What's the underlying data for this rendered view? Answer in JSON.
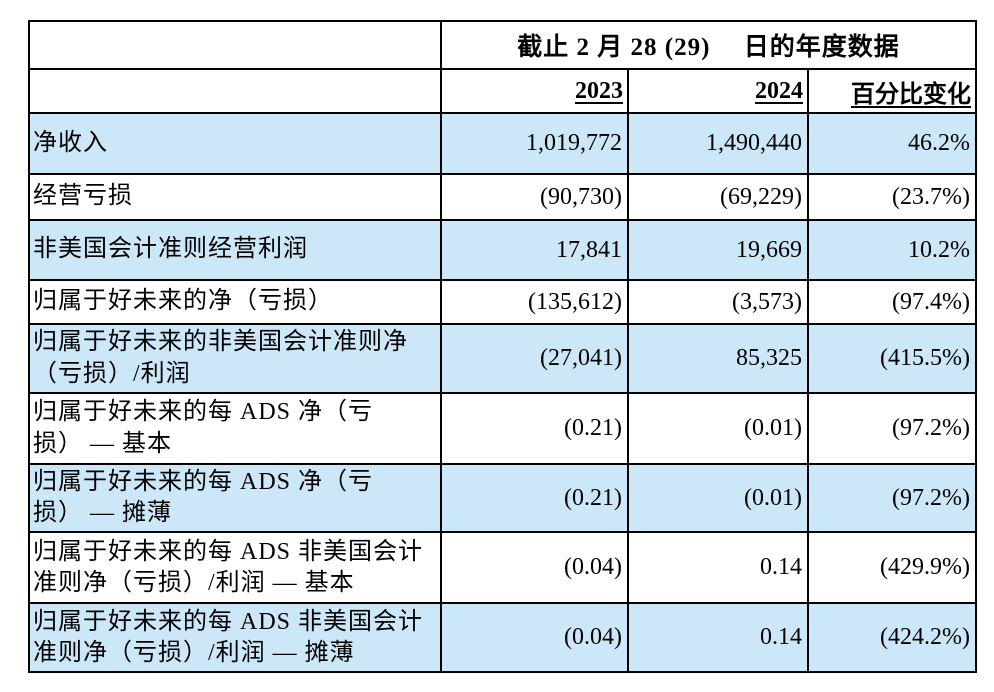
{
  "table": {
    "span_header": "截止 2 月 28 (29)　 日的年度数据",
    "col_headers": {
      "y2023": "2023",
      "y2024": "2024",
      "pct": "百分比变化"
    },
    "rows": [
      {
        "label": "净收入",
        "y2023": "1,019,772",
        "y2024": "1,490,440",
        "pct": "46.2%",
        "highlight": true
      },
      {
        "label": "经营亏损",
        "y2023": "(90,730)",
        "y2024": "(69,229)",
        "pct": "(23.7%)",
        "highlight": false
      },
      {
        "label": "非美国会计准则经营利润",
        "y2023": "17,841",
        "y2024": "19,669",
        "pct": "10.2%",
        "highlight": true
      },
      {
        "label": "归属于好未来的净（亏损）",
        "y2023": "(135,612)",
        "y2024": "(3,573)",
        "pct": "(97.4%)",
        "highlight": false
      },
      {
        "label": "归属于好未来的非美国会计准则净\n（亏损）/利润",
        "y2023": "(27,041)",
        "y2024": "85,325",
        "pct": "(415.5%)",
        "highlight": true
      },
      {
        "label": "归属于好未来的每 ADS 净（亏\n损） — 基本",
        "y2023": "(0.21)",
        "y2024": "(0.01)",
        "pct": "(97.2%)",
        "highlight": false
      },
      {
        "label": "归属于好未来的每 ADS 净（亏\n损） — 摊薄",
        "y2023": "(0.21)",
        "y2024": "(0.01)",
        "pct": "(97.2%)",
        "highlight": true
      },
      {
        "label": "归属于好未来的每 ADS 非美国会计\n准则净（亏损）/利润 — 基本",
        "y2023": "(0.04)",
        "y2024": "0.14",
        "pct": "(429.9%)",
        "highlight": false
      },
      {
        "label": "归属于好未来的每 ADS 非美国会计\n准则净（亏损）/利润 — 摊薄",
        "y2023": "(0.04)",
        "y2024": "0.14",
        "pct": "(424.2%)",
        "highlight": true
      }
    ],
    "colors": {
      "row_highlight": "#CBE7F8",
      "border": "#000000",
      "text": "#000000"
    }
  }
}
